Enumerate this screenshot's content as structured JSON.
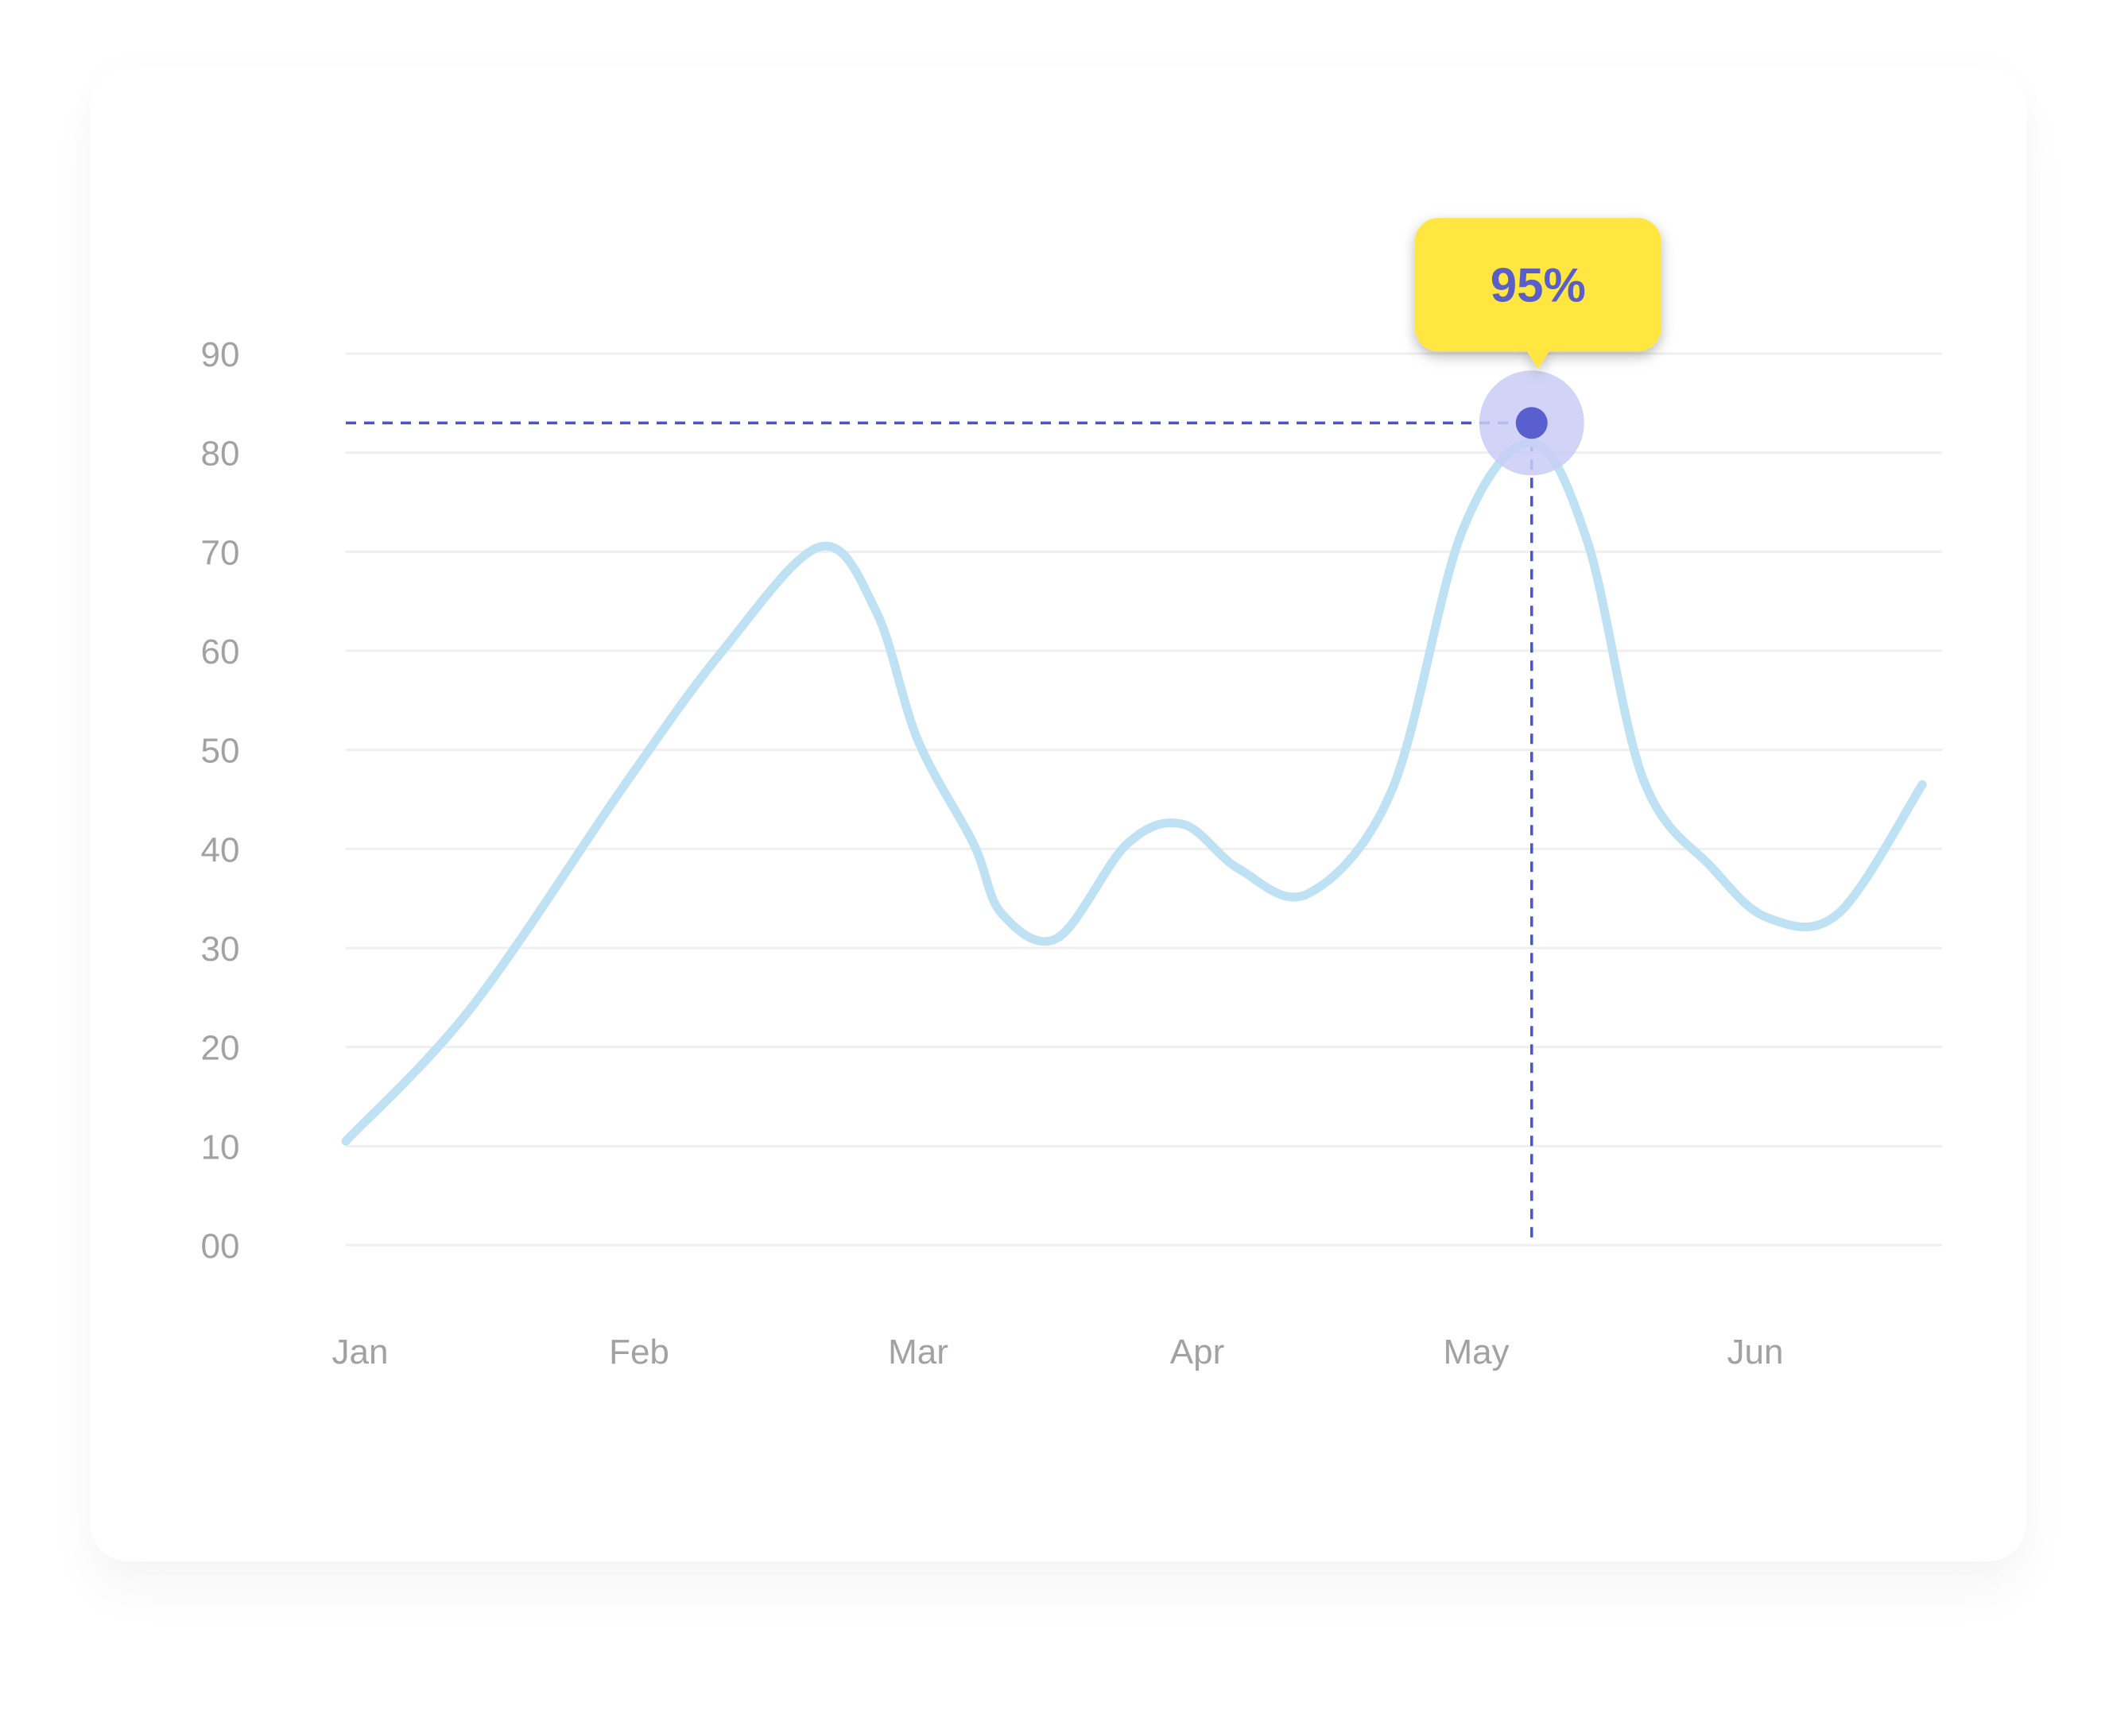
{
  "chart_data": {
    "type": "line",
    "title": "",
    "xlabel": "",
    "ylabel": "",
    "categories": [
      "Jan",
      "Feb",
      "Mar",
      "Apr",
      "May",
      "Jun"
    ],
    "y_ticks": [
      "00",
      "10",
      "20",
      "30",
      "40",
      "50",
      "60",
      "70",
      "80",
      "90"
    ],
    "ylim": [
      0,
      90
    ],
    "grid": true,
    "series": [
      {
        "color": "#bee1f4",
        "points": [
          [
            0.0,
            10.5
          ],
          [
            0.45,
            24
          ],
          [
            1.0,
            46.5
          ],
          [
            1.35,
            60
          ],
          [
            1.7,
            70.5
          ],
          [
            1.9,
            64
          ],
          [
            2.05,
            51
          ],
          [
            2.25,
            40.5
          ],
          [
            2.35,
            33.5
          ],
          [
            2.55,
            31
          ],
          [
            2.8,
            40.5
          ],
          [
            3.0,
            42.5
          ],
          [
            3.2,
            38
          ],
          [
            3.45,
            35.5
          ],
          [
            3.75,
            46
          ],
          [
            4.0,
            72
          ],
          [
            4.25,
            81
          ],
          [
            4.45,
            71
          ],
          [
            4.65,
            47
          ],
          [
            4.9,
            38
          ],
          [
            5.1,
            33
          ],
          [
            5.35,
            33.5
          ],
          [
            5.65,
            46.5
          ]
        ]
      }
    ],
    "highlight": {
      "x": 4.25,
      "y": 83,
      "label": "95%",
      "marker_color": "#5a5fd0",
      "halo_color": "#c9cdf4",
      "tooltip_color": "#ffe63f",
      "guide_color": "#4a52d6"
    }
  }
}
